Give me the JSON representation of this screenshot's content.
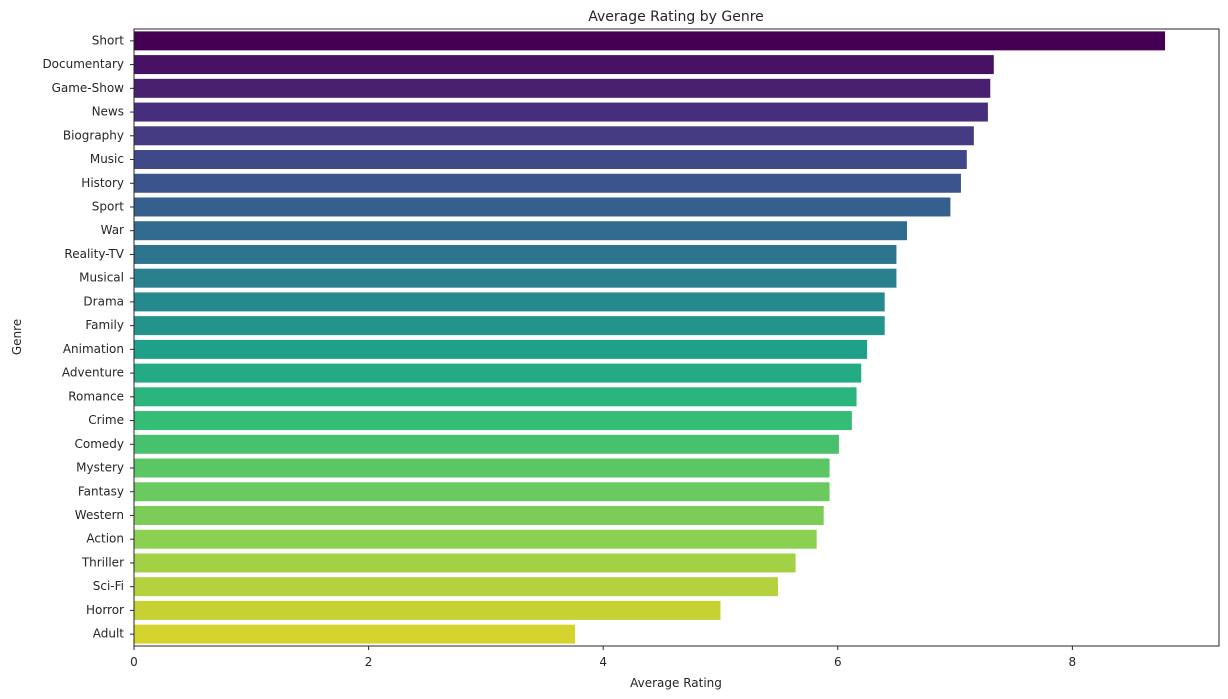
{
  "chart_data": {
    "type": "bar",
    "orientation": "horizontal",
    "title": "Average Rating by Genre",
    "xlabel": "Average Rating",
    "ylabel": "Genre",
    "xlim": [
      0,
      9.25
    ],
    "xticks": [
      0,
      2,
      4,
      6,
      8
    ],
    "grid": false,
    "legend": "none",
    "palette": "viridis",
    "categories": [
      "Short",
      "Documentary",
      "Game-Show",
      "News",
      "Biography",
      "Music",
      "History",
      "Sport",
      "War",
      "Reality-TV",
      "Musical",
      "Drama",
      "Family",
      "Animation",
      "Adventure",
      "Romance",
      "Crime",
      "Comedy",
      "Mystery",
      "Fantasy",
      "Western",
      "Action",
      "Thriller",
      "Sci-Fi",
      "Horror",
      "Adult"
    ],
    "values": [
      8.79,
      7.33,
      7.3,
      7.28,
      7.16,
      7.1,
      7.05,
      6.96,
      6.59,
      6.5,
      6.5,
      6.4,
      6.4,
      6.25,
      6.2,
      6.16,
      6.12,
      6.01,
      5.93,
      5.93,
      5.88,
      5.82,
      5.64,
      5.49,
      5.0,
      3.76
    ],
    "colors": [
      "#440154",
      "#471163",
      "#48206f",
      "#472e7c",
      "#453b82",
      "#404887",
      "#3b548b",
      "#35608d",
      "#316b8d",
      "#2d758e",
      "#29808e",
      "#25898e",
      "#22948c",
      "#1fa189",
      "#22ab84",
      "#2ab47d",
      "#35bc75",
      "#48c16e",
      "#5ac664",
      "#6ac95f",
      "#7bcd57",
      "#8cd052",
      "#a2d146",
      "#b4d23e",
      "#c4d233",
      "#d5d32e"
    ]
  }
}
